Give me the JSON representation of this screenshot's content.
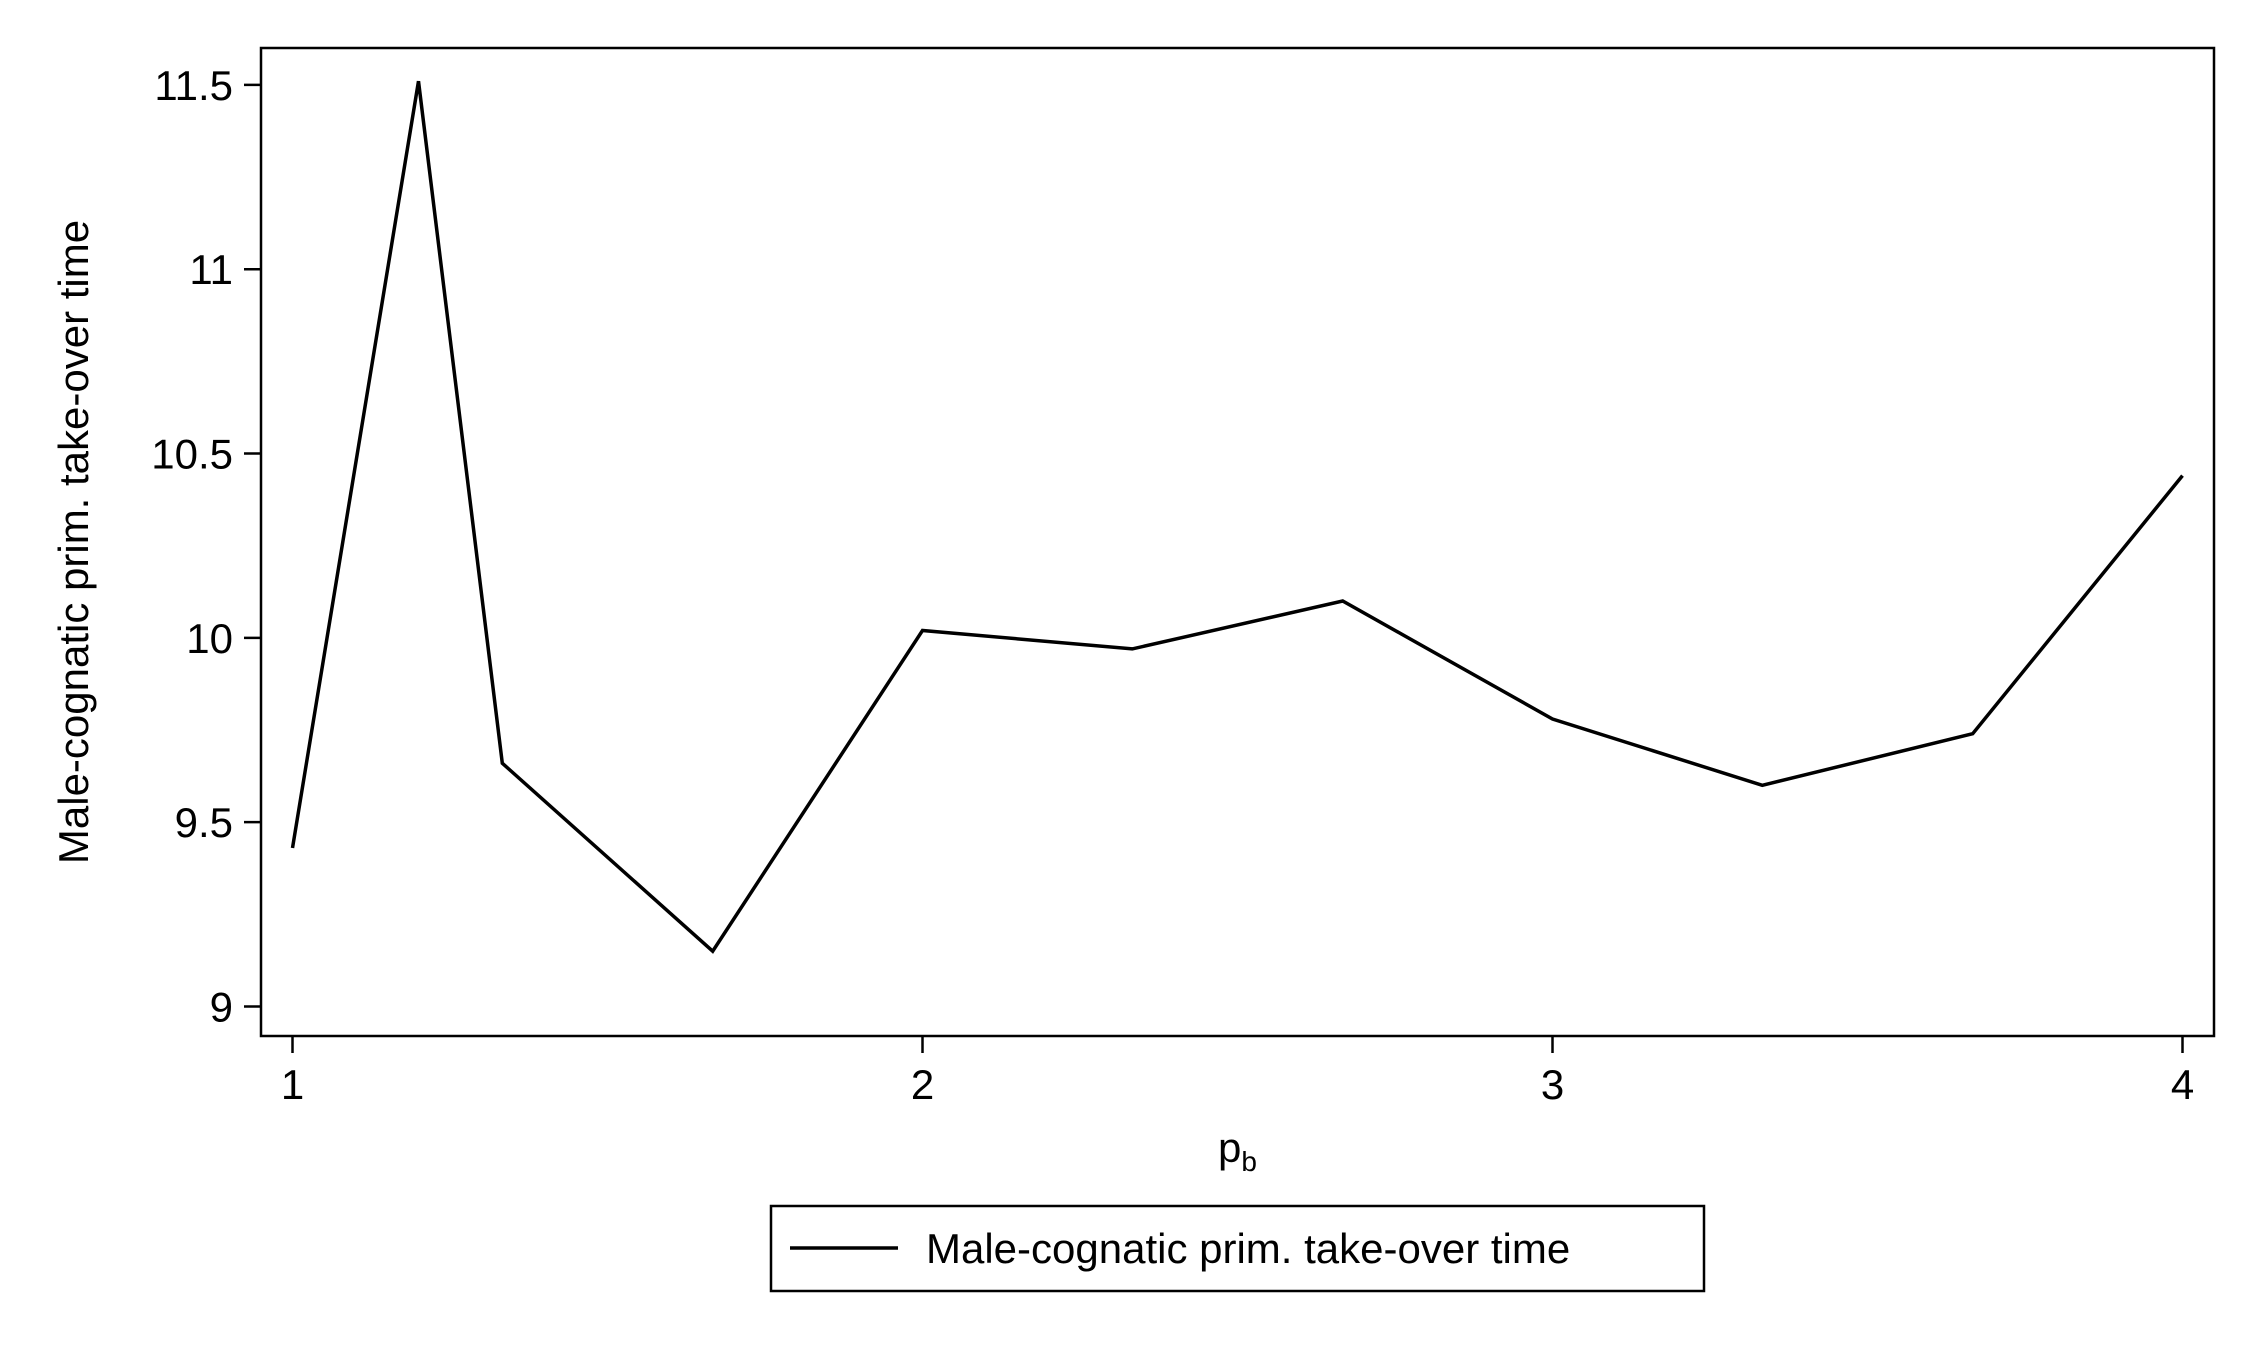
{
  "chart_data": {
    "type": "line",
    "xlabel_main": "p",
    "xlabel_sub": "b",
    "ylabel": "Male-cognatic prim. take-over time",
    "xlim": [
      0.95,
      4.05
    ],
    "ylim": [
      8.92,
      11.6
    ],
    "xticks": [
      1,
      2,
      3,
      4
    ],
    "xtick_labels": [
      "1",
      "2",
      "3",
      "4"
    ],
    "yticks": [
      9,
      9.5,
      10,
      10.5,
      11,
      11.5
    ],
    "ytick_labels": [
      "9",
      "9.5",
      "10",
      "10.5",
      "11",
      "11.5"
    ],
    "grid": false,
    "legend_position": "bottom",
    "series": [
      {
        "name": "Male-cognatic prim. take-over time",
        "color": "#000000",
        "x": [
          1.0,
          1.2,
          1.333,
          1.667,
          2.0,
          2.333,
          2.667,
          3.0,
          3.333,
          3.667,
          4.0
        ],
        "values": [
          9.43,
          11.51,
          9.66,
          9.15,
          10.02,
          9.97,
          10.1,
          9.78,
          9.6,
          9.74,
          10.44
        ]
      }
    ]
  }
}
